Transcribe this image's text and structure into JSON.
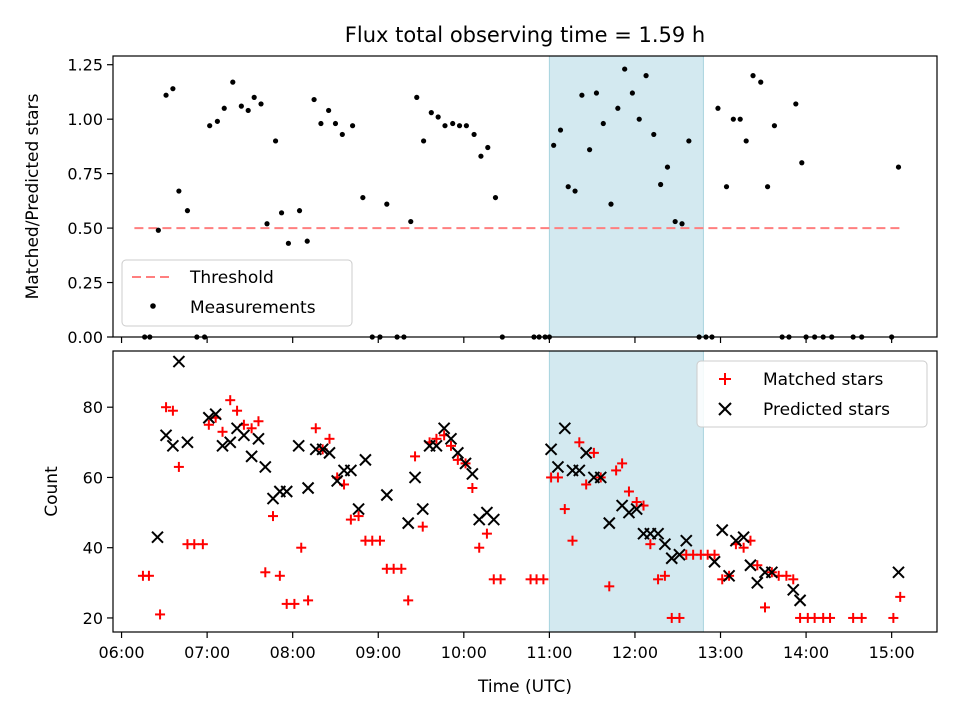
{
  "chart_data": [
    {
      "type": "scatter",
      "title": "Flux total observing time = 1.59 h",
      "xlabel": "",
      "ylabel": "Matched/Predicted stars",
      "ylim": [
        0,
        1.29
      ],
      "xlim": [
        5.9,
        15.53
      ],
      "yticks": [
        "0.00",
        "0.25",
        "0.50",
        "0.75",
        "1.00",
        "1.25"
      ],
      "grid": false,
      "legend_placement": "lower-left",
      "highlight_span": {
        "start": 11.0,
        "end": 12.8,
        "color": "#d3e9f0"
      },
      "threshold": {
        "name": "Threshold",
        "value": 0.5,
        "x_range": [
          6.15,
          15.1
        ],
        "color": "#ff7f7f"
      },
      "series": [
        {
          "name": "Measurements",
          "color": "#000000",
          "points": [
            [
              6.27,
              0
            ],
            [
              6.33,
              0
            ],
            [
              6.43,
              0.49
            ],
            [
              6.52,
              1.11
            ],
            [
              6.6,
              1.14
            ],
            [
              6.67,
              0.67
            ],
            [
              6.77,
              0.58
            ],
            [
              6.88,
              0
            ],
            [
              6.97,
              0
            ],
            [
              7.03,
              0.97
            ],
            [
              7.12,
              0.99
            ],
            [
              7.2,
              1.05
            ],
            [
              7.3,
              1.17
            ],
            [
              7.4,
              1.06
            ],
            [
              7.48,
              1.04
            ],
            [
              7.55,
              1.1
            ],
            [
              7.63,
              1.07
            ],
            [
              7.7,
              0.52
            ],
            [
              7.8,
              0.9
            ],
            [
              7.87,
              0.57
            ],
            [
              7.95,
              0.43
            ],
            [
              8.08,
              0.58
            ],
            [
              8.17,
              0.44
            ],
            [
              8.25,
              1.09
            ],
            [
              8.33,
              0.98
            ],
            [
              8.42,
              1.04
            ],
            [
              8.5,
              0.98
            ],
            [
              8.58,
              0.93
            ],
            [
              8.7,
              0.97
            ],
            [
              8.82,
              0.64
            ],
            [
              8.93,
              0
            ],
            [
              9.02,
              0
            ],
            [
              9.1,
              0.61
            ],
            [
              9.22,
              0
            ],
            [
              9.3,
              0
            ],
            [
              9.38,
              0.53
            ],
            [
              9.45,
              1.1
            ],
            [
              9.53,
              0.9
            ],
            [
              9.62,
              1.03
            ],
            [
              9.7,
              1.01
            ],
            [
              9.78,
              0.97
            ],
            [
              9.87,
              0.98
            ],
            [
              9.95,
              0.97
            ],
            [
              10.03,
              0.97
            ],
            [
              10.12,
              0.93
            ],
            [
              10.2,
              0.83
            ],
            [
              10.28,
              0.87
            ],
            [
              10.37,
              0.64
            ],
            [
              10.45,
              0
            ],
            [
              10.82,
              0
            ],
            [
              10.88,
              0
            ],
            [
              10.95,
              0
            ],
            [
              11.0,
              0
            ],
            [
              11.05,
              0.88
            ],
            [
              11.13,
              0.95
            ],
            [
              11.22,
              0.69
            ],
            [
              11.3,
              0.67
            ],
            [
              11.38,
              1.11
            ],
            [
              11.47,
              0.86
            ],
            [
              11.55,
              1.12
            ],
            [
              11.63,
              0.98
            ],
            [
              11.72,
              0.61
            ],
            [
              11.8,
              1.05
            ],
            [
              11.88,
              1.23
            ],
            [
              11.97,
              1.12
            ],
            [
              12.05,
              1.0
            ],
            [
              12.13,
              1.2
            ],
            [
              12.22,
              0.93
            ],
            [
              12.3,
              0.7
            ],
            [
              12.38,
              0.78
            ],
            [
              12.47,
              0.53
            ],
            [
              12.55,
              0.52
            ],
            [
              12.63,
              0.9
            ],
            [
              12.75,
              0
            ],
            [
              12.83,
              0
            ],
            [
              12.9,
              0
            ],
            [
              12.97,
              1.05
            ],
            [
              13.07,
              0.69
            ],
            [
              13.15,
              1.0
            ],
            [
              13.23,
              1.0
            ],
            [
              13.3,
              0.9
            ],
            [
              13.38,
              1.2
            ],
            [
              13.47,
              1.17
            ],
            [
              13.55,
              0.69
            ],
            [
              13.63,
              0.97
            ],
            [
              13.72,
              0
            ],
            [
              13.8,
              0
            ],
            [
              13.88,
              1.07
            ],
            [
              13.95,
              0.8
            ],
            [
              14.0,
              0
            ],
            [
              14.1,
              0
            ],
            [
              14.2,
              0
            ],
            [
              14.3,
              0
            ],
            [
              14.55,
              0
            ],
            [
              14.65,
              0
            ],
            [
              15.0,
              0
            ],
            [
              15.08,
              0.78
            ]
          ]
        }
      ]
    },
    {
      "type": "scatter",
      "title": "",
      "xlabel": "Time (UTC)",
      "ylabel": "Count",
      "ylim": [
        16,
        96
      ],
      "xlim": [
        5.9,
        15.53
      ],
      "yticks": [
        "20",
        "40",
        "60",
        "80"
      ],
      "xticks": [
        "06:00",
        "07:00",
        "08:00",
        "09:00",
        "10:00",
        "11:00",
        "12:00",
        "13:00",
        "14:00",
        "15:00"
      ],
      "grid": false,
      "legend_placement": "top-right",
      "highlight_span": {
        "start": 11.0,
        "end": 12.8,
        "color": "#d3e9f0"
      },
      "series": [
        {
          "name": "Matched stars",
          "color": "#ff0000",
          "marker": "plus",
          "points": [
            [
              6.25,
              32
            ],
            [
              6.32,
              32
            ],
            [
              6.45,
              21
            ],
            [
              6.52,
              80
            ],
            [
              6.6,
              79
            ],
            [
              6.67,
              63
            ],
            [
              6.77,
              41
            ],
            [
              6.85,
              41
            ],
            [
              6.95,
              41
            ],
            [
              7.02,
              75
            ],
            [
              7.1,
              77
            ],
            [
              7.18,
              73
            ],
            [
              7.27,
              82
            ],
            [
              7.35,
              79
            ],
            [
              7.43,
              75
            ],
            [
              7.52,
              74
            ],
            [
              7.6,
              76
            ],
            [
              7.68,
              33
            ],
            [
              7.77,
              49
            ],
            [
              7.85,
              32
            ],
            [
              7.93,
              24
            ],
            [
              8.02,
              24
            ],
            [
              8.1,
              40
            ],
            [
              8.18,
              25
            ],
            [
              8.27,
              74
            ],
            [
              8.35,
              68
            ],
            [
              8.43,
              71
            ],
            [
              8.52,
              60
            ],
            [
              8.6,
              58
            ],
            [
              8.68,
              48
            ],
            [
              8.77,
              49
            ],
            [
              8.85,
              42
            ],
            [
              8.93,
              42
            ],
            [
              9.02,
              42
            ],
            [
              9.1,
              34
            ],
            [
              9.18,
              34
            ],
            [
              9.27,
              34
            ],
            [
              9.35,
              25
            ],
            [
              9.43,
              66
            ],
            [
              9.52,
              46
            ],
            [
              9.6,
              70
            ],
            [
              9.68,
              71
            ],
            [
              9.77,
              72
            ],
            [
              9.85,
              69
            ],
            [
              9.93,
              65
            ],
            [
              10.02,
              64
            ],
            [
              10.1,
              57
            ],
            [
              10.18,
              40
            ],
            [
              10.27,
              44
            ],
            [
              10.35,
              31
            ],
            [
              10.43,
              31
            ],
            [
              10.78,
              31
            ],
            [
              10.85,
              31
            ],
            [
              10.93,
              31
            ],
            [
              11.02,
              60
            ],
            [
              11.1,
              60
            ],
            [
              11.18,
              51
            ],
            [
              11.27,
              42
            ],
            [
              11.35,
              70
            ],
            [
              11.43,
              58
            ],
            [
              11.52,
              67
            ],
            [
              11.6,
              60
            ],
            [
              11.7,
              29
            ],
            [
              11.78,
              62
            ],
            [
              11.85,
              64
            ],
            [
              11.93,
              56
            ],
            [
              12.02,
              53
            ],
            [
              12.1,
              52
            ],
            [
              12.18,
              41
            ],
            [
              12.27,
              31
            ],
            [
              12.35,
              32
            ],
            [
              12.43,
              20
            ],
            [
              12.52,
              20
            ],
            [
              12.6,
              38
            ],
            [
              12.68,
              38
            ],
            [
              12.77,
              38
            ],
            [
              12.85,
              38
            ],
            [
              12.93,
              38
            ],
            [
              13.02,
              31
            ],
            [
              13.1,
              32
            ],
            [
              13.18,
              41
            ],
            [
              13.27,
              40
            ],
            [
              13.35,
              42
            ],
            [
              13.43,
              35
            ],
            [
              13.52,
              23
            ],
            [
              13.6,
              33
            ],
            [
              13.68,
              32
            ],
            [
              13.77,
              32
            ],
            [
              13.85,
              31
            ],
            [
              13.93,
              20
            ],
            [
              14.02,
              20
            ],
            [
              14.1,
              20
            ],
            [
              14.2,
              20
            ],
            [
              14.28,
              20
            ],
            [
              14.55,
              20
            ],
            [
              14.65,
              20
            ],
            [
              15.02,
              20
            ],
            [
              15.1,
              26
            ]
          ]
        },
        {
          "name": "Predicted stars",
          "color": "#000000",
          "marker": "x",
          "points": [
            [
              6.42,
              43
            ],
            [
              6.52,
              72
            ],
            [
              6.6,
              69
            ],
            [
              6.67,
              93
            ],
            [
              6.77,
              70
            ],
            [
              7.02,
              77
            ],
            [
              7.1,
              78
            ],
            [
              7.18,
              69
            ],
            [
              7.27,
              70
            ],
            [
              7.35,
              74
            ],
            [
              7.43,
              72
            ],
            [
              7.52,
              66
            ],
            [
              7.6,
              71
            ],
            [
              7.68,
              63
            ],
            [
              7.77,
              54
            ],
            [
              7.85,
              56
            ],
            [
              7.93,
              56
            ],
            [
              8.07,
              69
            ],
            [
              8.18,
              57
            ],
            [
              8.27,
              68
            ],
            [
              8.35,
              68
            ],
            [
              8.43,
              67
            ],
            [
              8.52,
              59
            ],
            [
              8.6,
              62
            ],
            [
              8.68,
              62
            ],
            [
              8.77,
              51
            ],
            [
              8.85,
              65
            ],
            [
              9.1,
              55
            ],
            [
              9.35,
              47
            ],
            [
              9.43,
              60
            ],
            [
              9.52,
              51
            ],
            [
              9.6,
              69
            ],
            [
              9.68,
              69
            ],
            [
              9.77,
              74
            ],
            [
              9.85,
              71
            ],
            [
              9.93,
              67
            ],
            [
              10.02,
              64
            ],
            [
              10.1,
              61
            ],
            [
              10.18,
              48
            ],
            [
              10.27,
              50
            ],
            [
              10.35,
              48
            ],
            [
              11.02,
              68
            ],
            [
              11.1,
              63
            ],
            [
              11.18,
              74
            ],
            [
              11.27,
              62
            ],
            [
              11.35,
              62
            ],
            [
              11.43,
              67
            ],
            [
              11.52,
              60
            ],
            [
              11.6,
              60
            ],
            [
              11.7,
              47
            ],
            [
              11.85,
              52
            ],
            [
              11.93,
              50
            ],
            [
              12.02,
              51
            ],
            [
              12.1,
              44
            ],
            [
              12.18,
              44
            ],
            [
              12.27,
              44
            ],
            [
              12.35,
              41
            ],
            [
              12.43,
              37
            ],
            [
              12.52,
              38
            ],
            [
              12.6,
              42
            ],
            [
              12.93,
              36
            ],
            [
              13.02,
              45
            ],
            [
              13.1,
              32
            ],
            [
              13.18,
              42
            ],
            [
              13.27,
              43
            ],
            [
              13.35,
              35
            ],
            [
              13.43,
              30
            ],
            [
              13.52,
              33
            ],
            [
              13.6,
              33
            ],
            [
              13.85,
              28
            ],
            [
              13.93,
              25
            ],
            [
              15.08,
              33
            ]
          ]
        }
      ]
    }
  ]
}
